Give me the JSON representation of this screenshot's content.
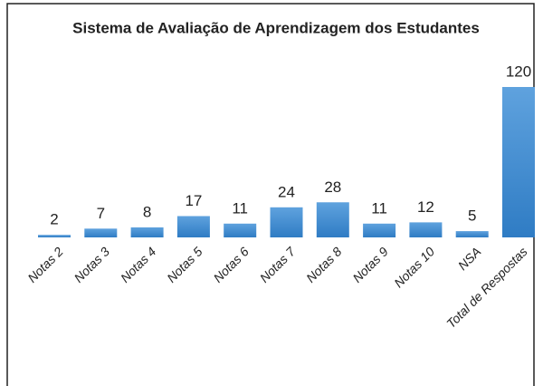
{
  "chart_data": {
    "type": "bar",
    "title": "Sistema de Avaliação de Aprendizagem dos Estudantes",
    "categories": [
      "Notas 2",
      "Notas 3",
      "Notas 4",
      "Notas 5",
      "Notas 6",
      "Notas 7",
      "Notas 8",
      "Notas 9",
      "Notas 10",
      "NSA",
      "Total de Respostas"
    ],
    "values": [
      2,
      7,
      8,
      17,
      11,
      24,
      28,
      11,
      12,
      5,
      120
    ],
    "color": "#4a8fd4"
  }
}
